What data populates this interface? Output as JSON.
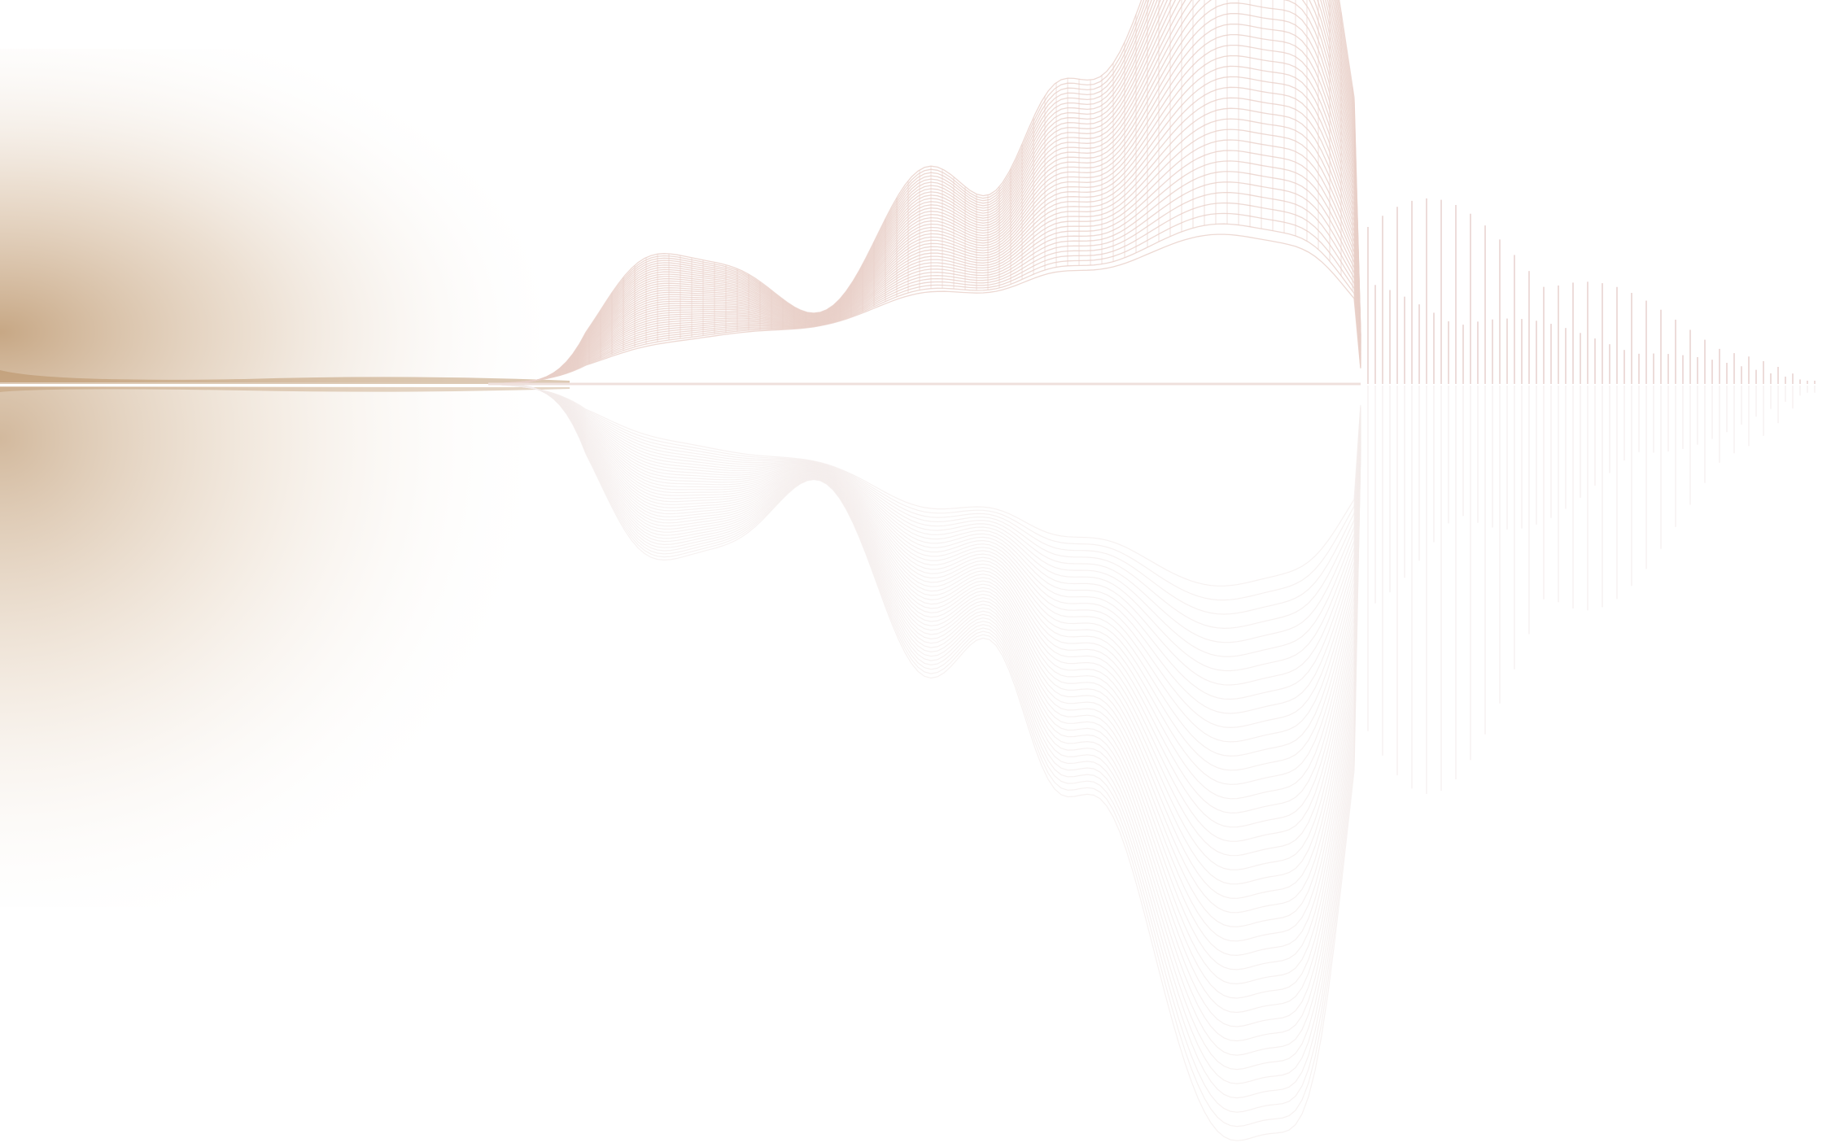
{
  "colors": {
    "background": "#ffffff",
    "haze": "#b48a5c",
    "wireframe": "#e8cfc8",
    "reflection": "#f3eceb",
    "bars": "#eddcda"
  }
}
